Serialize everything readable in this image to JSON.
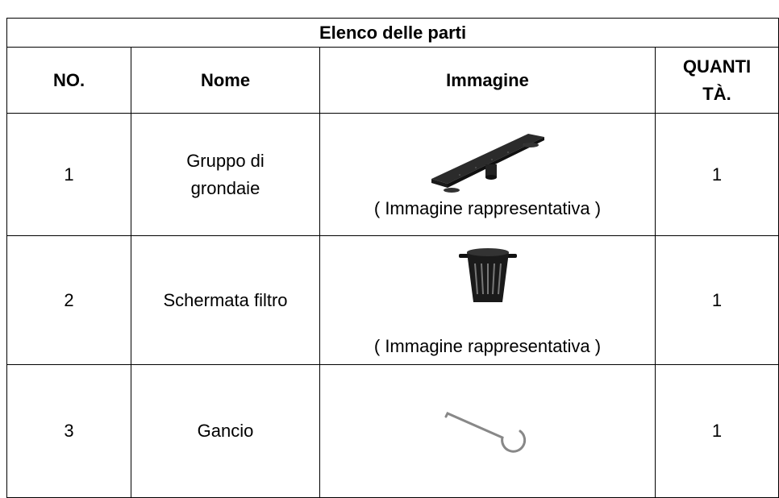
{
  "table": {
    "title": "Elenco delle parti",
    "header": [
      "NO.",
      "Nome",
      "Immagine",
      "QUANTITÀ."
    ],
    "rows": [
      {
        "no": "1",
        "name": "Gruppo di grondaie",
        "caption": "( Immagine rappresentativa )",
        "qty": "1"
      },
      {
        "no": "2",
        "name": "Schermata filtro",
        "caption": "( Immagine rappresentativa )",
        "qty": "1"
      },
      {
        "no": "3",
        "name": "Gancio",
        "qty": "1"
      }
    ]
  }
}
